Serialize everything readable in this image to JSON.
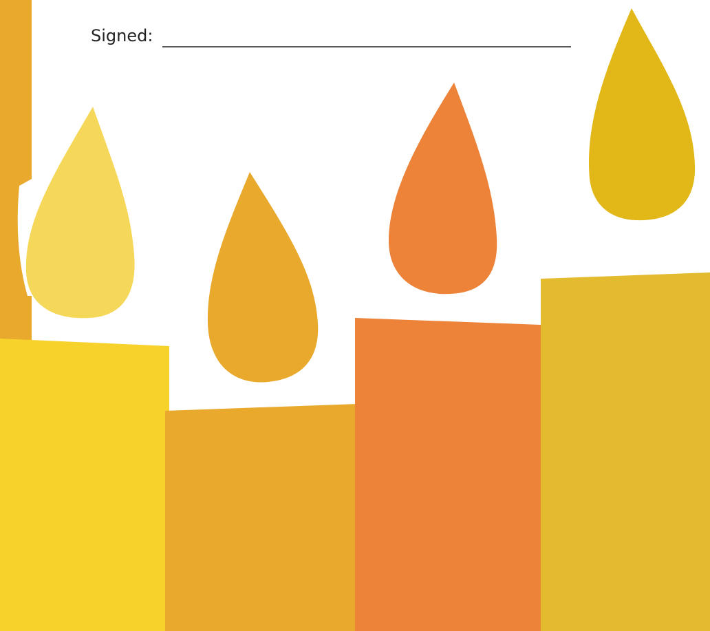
{
  "document": {
    "signature_label": "Signed:"
  }
}
